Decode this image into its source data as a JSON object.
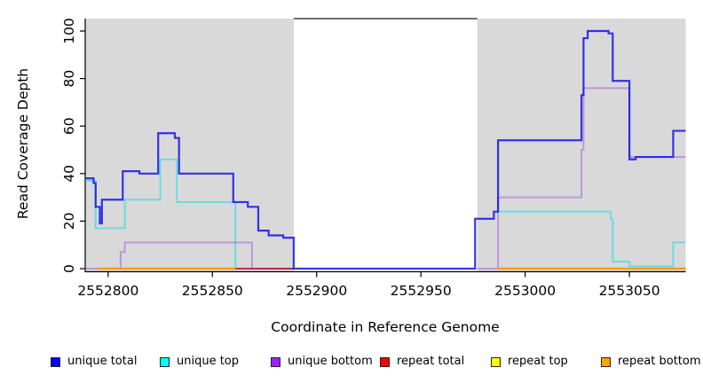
{
  "chart_data": {
    "type": "line",
    "subtype": "step-coverage-plot",
    "title": "",
    "xlabel": "Coordinate in Reference Genome",
    "ylabel": "Read Coverage Depth",
    "xlim": [
      2552789,
      2553077
    ],
    "ylim": [
      0,
      105
    ],
    "x_ticks": [
      2552800,
      2552850,
      2552900,
      2552950,
      2553000,
      2553050
    ],
    "y_ticks": [
      0,
      20,
      40,
      60,
      80,
      100
    ],
    "grid": false,
    "legend_position": "bottom",
    "panel_background": "#ffffff",
    "covered_region_color": "#d9d9d9",
    "covered_regions": [
      [
        2552789,
        2552889
      ],
      [
        2552977,
        2553077
      ]
    ],
    "uncovered_region": [
      2552889,
      2552977
    ],
    "uncovered_gap_top_border_color": "#6e6e6e",
    "axis_color": "#000000",
    "series": [
      {
        "name": "unique total",
        "legend_color": "#0000ff",
        "line_color": "rgba(20,20,230,0.85)",
        "line_width": 2.2,
        "segments": [
          [
            [
              2552789,
              38
            ],
            [
              2552793,
              36
            ],
            [
              2552794,
              26
            ],
            [
              2552796,
              19
            ],
            [
              2552797,
              29
            ],
            [
              2552807,
              41
            ],
            [
              2552815,
              40
            ],
            [
              2552824,
              57
            ],
            [
              2552832,
              55
            ],
            [
              2552834,
              40
            ],
            [
              2552860,
              28
            ],
            [
              2552867,
              26
            ],
            [
              2552872,
              16
            ],
            [
              2552877,
              14
            ],
            [
              2552884,
              13
            ],
            [
              2552889,
              0
            ],
            [
              2552976,
              21
            ],
            [
              2552985,
              24
            ],
            [
              2552987,
              54
            ],
            [
              2553027,
              73
            ],
            [
              2553028,
              97
            ],
            [
              2553030,
              100
            ],
            [
              2553040,
              99
            ],
            [
              2553042,
              79
            ],
            [
              2553050,
              46
            ],
            [
              2553053,
              47
            ],
            [
              2553071,
              58
            ],
            [
              2553077,
              58
            ]
          ]
        ]
      },
      {
        "name": "unique top",
        "legend_color": "#00ffff",
        "line_color": "rgba(0,220,235,0.5)",
        "line_width": 2,
        "segments": [
          [
            [
              2552789,
              37
            ],
            [
              2552794,
              17
            ],
            [
              2552808,
              29
            ],
            [
              2552825,
              46
            ],
            [
              2552833,
              28
            ],
            [
              2552861,
              0
            ],
            [
              2552889,
              0
            ]
          ],
          [
            [
              2552987,
              24
            ],
            [
              2553041,
              21
            ],
            [
              2553042,
              3
            ],
            [
              2553050,
              1
            ],
            [
              2553071,
              11
            ],
            [
              2553077,
              11
            ]
          ]
        ]
      },
      {
        "name": "unique bottom",
        "legend_color": "#a020f0",
        "line_color": "rgba(150,60,220,0.42)",
        "line_width": 2,
        "segments": [
          [
            [
              2552789,
              0
            ],
            [
              2552806,
              7
            ],
            [
              2552808,
              11
            ],
            [
              2552869,
              0
            ],
            [
              2552889,
              0
            ]
          ],
          [
            [
              2552977,
              0
            ],
            [
              2552987,
              30
            ],
            [
              2553027,
              50
            ],
            [
              2553028,
              76
            ],
            [
              2553050,
              47
            ],
            [
              2553077,
              47
            ]
          ]
        ]
      },
      {
        "name": "repeat total",
        "legend_color": "#ff0000",
        "line_color": "rgba(200,10,45,0.8)",
        "line_width": 2,
        "segments": [
          [
            [
              2552861,
              0
            ],
            [
              2552889,
              0
            ]
          ]
        ]
      },
      {
        "name": "repeat top",
        "legend_color": "#ffff00",
        "line_color": "rgba(255,255,0,0.9)",
        "line_width": 2,
        "segments": []
      },
      {
        "name": "repeat bottom",
        "legend_color": "#ffa500",
        "line_color": "#ff9b05",
        "line_width": 2.4,
        "segments": [
          [
            [
              2552795,
              0
            ],
            [
              2552861,
              0
            ]
          ],
          [
            [
              2552987,
              0
            ],
            [
              2553077,
              0
            ]
          ]
        ]
      }
    ]
  }
}
